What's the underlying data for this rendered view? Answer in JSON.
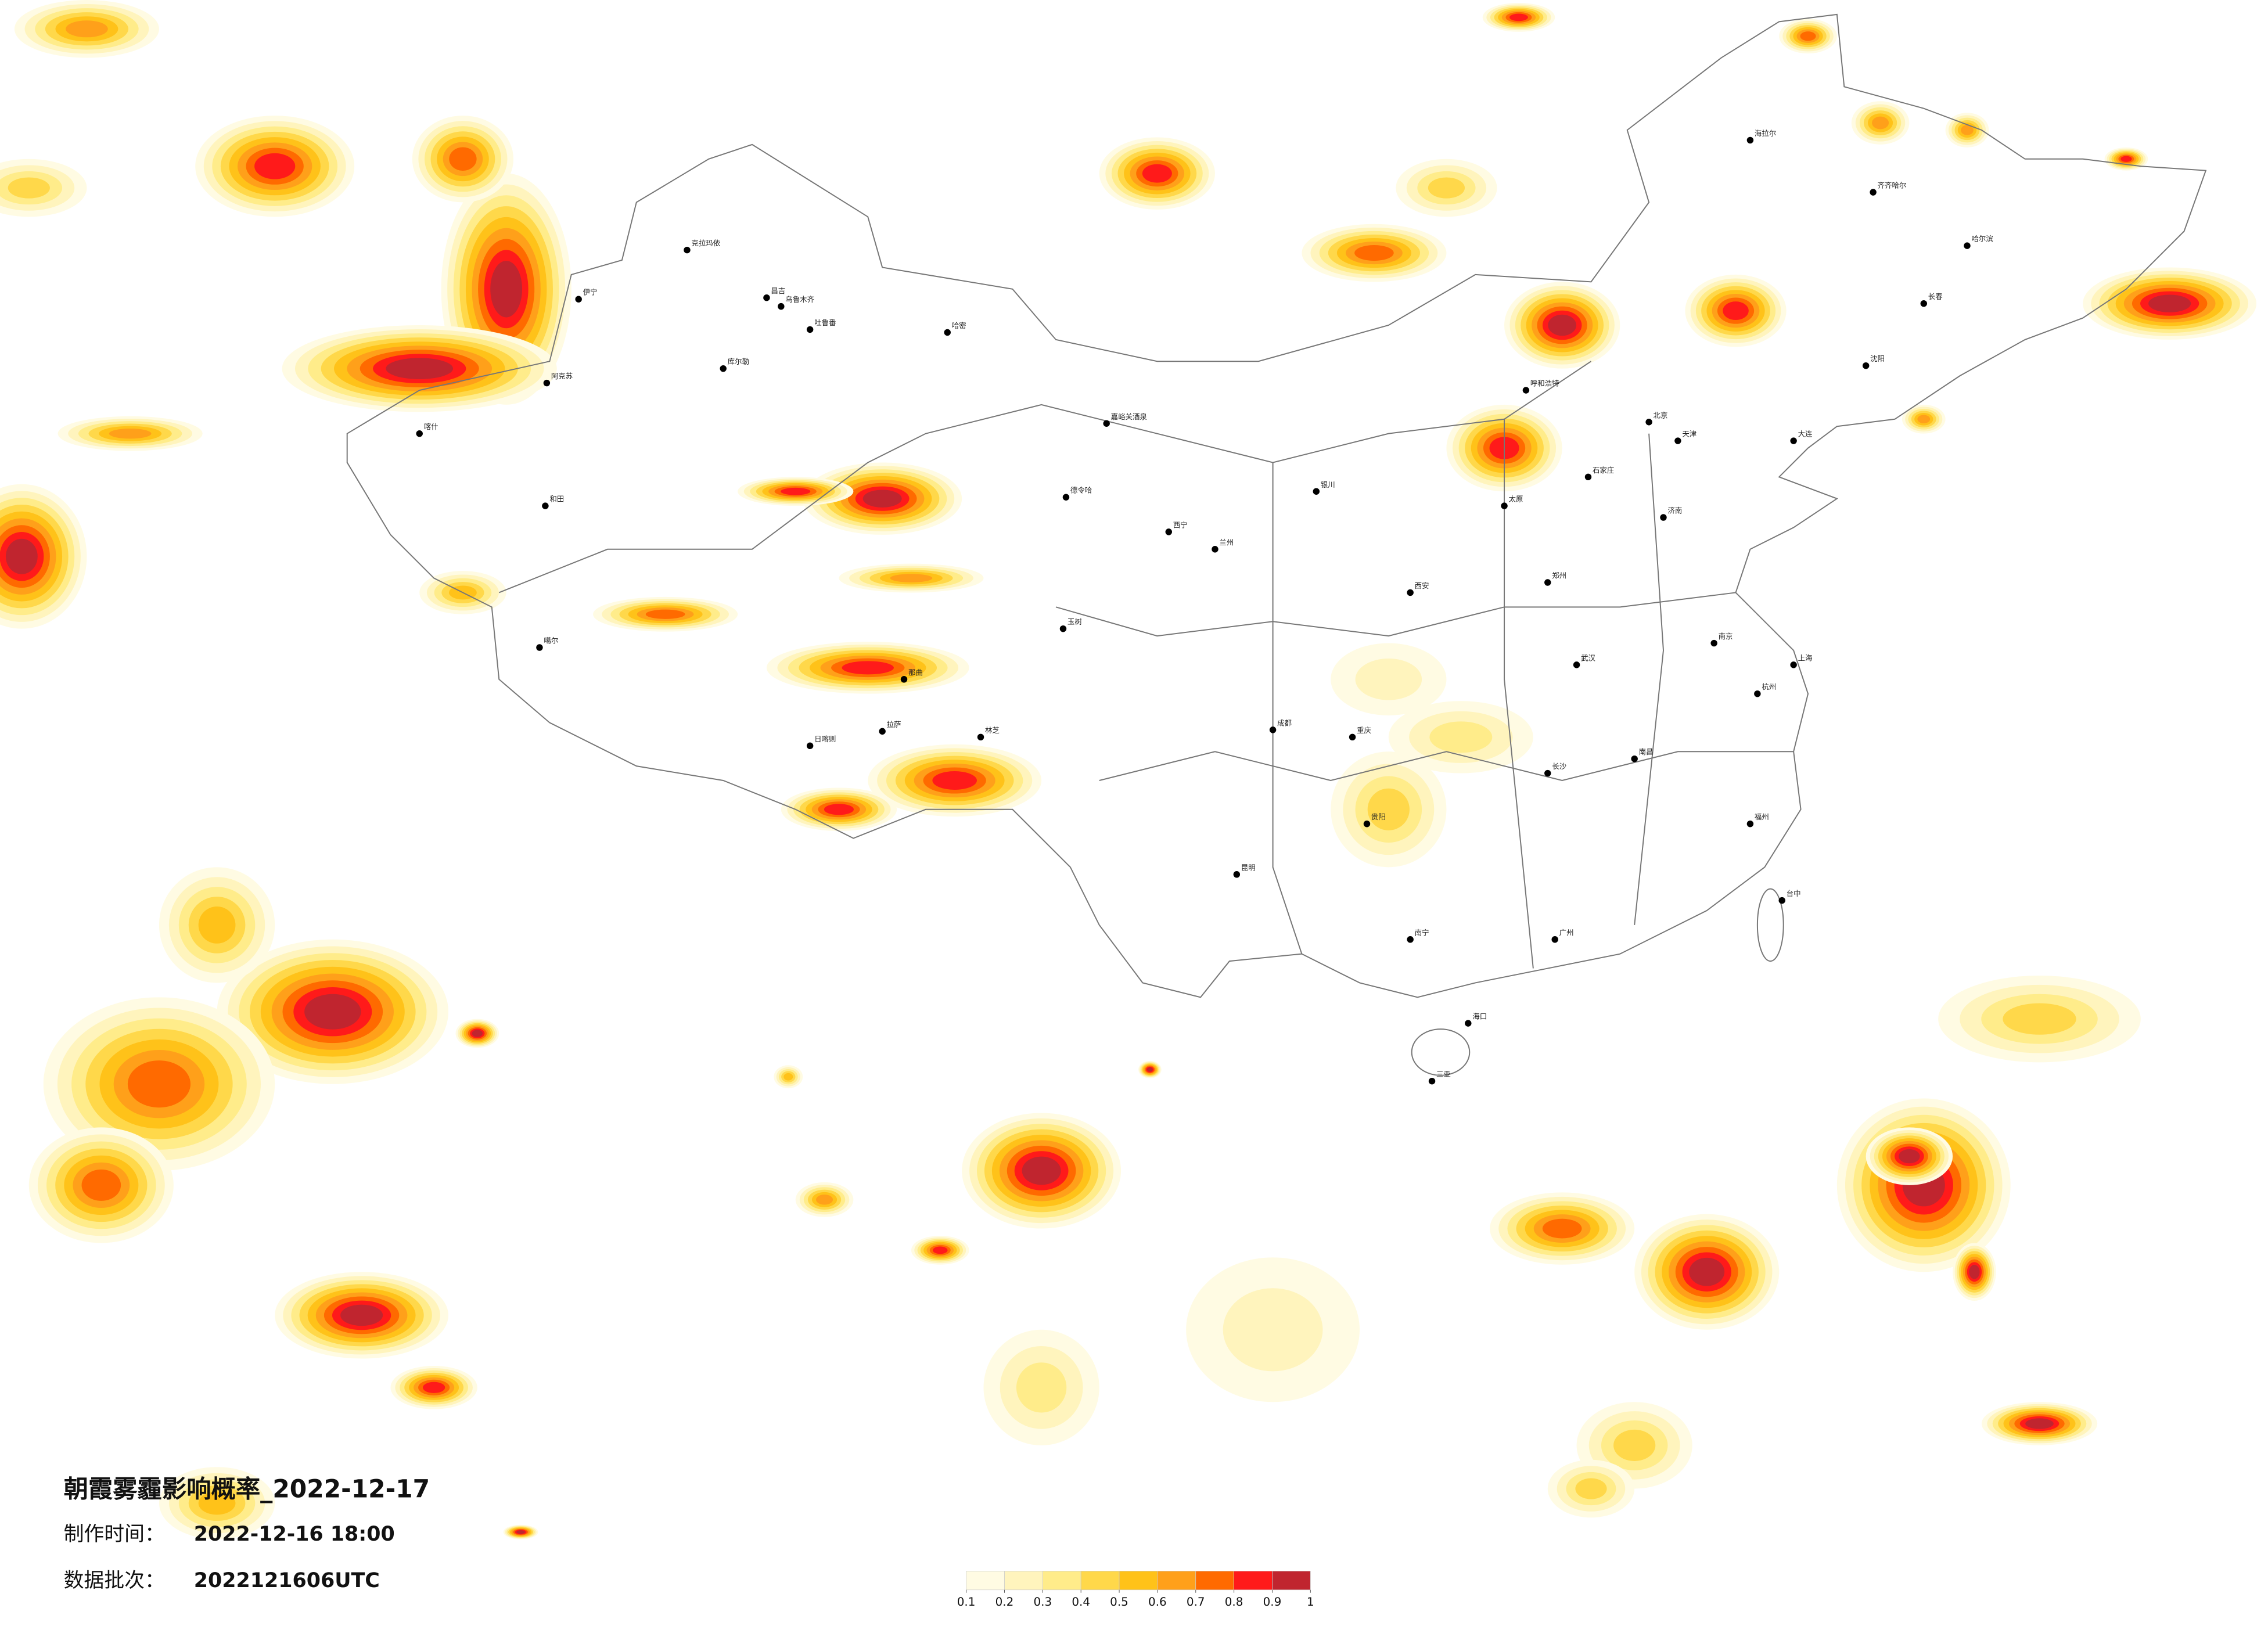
{
  "title": "朝霞雾霾影响概率_2022-12-17",
  "produced": {
    "label": "制作时间：",
    "value": "2022-12-16 18:00"
  },
  "batch": {
    "label": "数据批次：",
    "value": "2022121606UTC"
  },
  "legend": {
    "ticks": [
      0.1,
      0.2,
      0.3,
      0.4,
      0.5,
      0.6,
      0.7,
      0.8,
      0.9,
      1
    ],
    "colors": [
      "#fffbe3",
      "#fff4bd",
      "#ffec8a",
      "#ffd84a",
      "#ffc219",
      "#ffa01a",
      "#ff6a00",
      "#ff1a1a",
      "#c0252f"
    ]
  },
  "cities": [
    "克拉玛依",
    "昌吉",
    "乌鲁木齐",
    "吐鲁番",
    "哈密",
    "库尔勒",
    "阿克苏",
    "伊宁",
    "和田",
    "喀什",
    "噶尔",
    "拉萨",
    "日喀则",
    "林芝",
    "那曲",
    "德令哈",
    "玉树",
    "西宁",
    "兰州",
    "嘉峪关酒泉",
    "银川",
    "呼和浩特",
    "北京",
    "天津",
    "石家庄",
    "太原",
    "济南",
    "郑州",
    "西安",
    "成都",
    "重庆",
    "武汉",
    "长沙",
    "南昌",
    "杭州",
    "南京",
    "上海",
    "福州",
    "广州",
    "南宁",
    "昆明",
    "贵阳",
    "海口",
    "三亚",
    "哈尔滨",
    "长春",
    "沈阳",
    "大连",
    "齐齐哈尔",
    "台中",
    "海拉尔"
  ]
}
